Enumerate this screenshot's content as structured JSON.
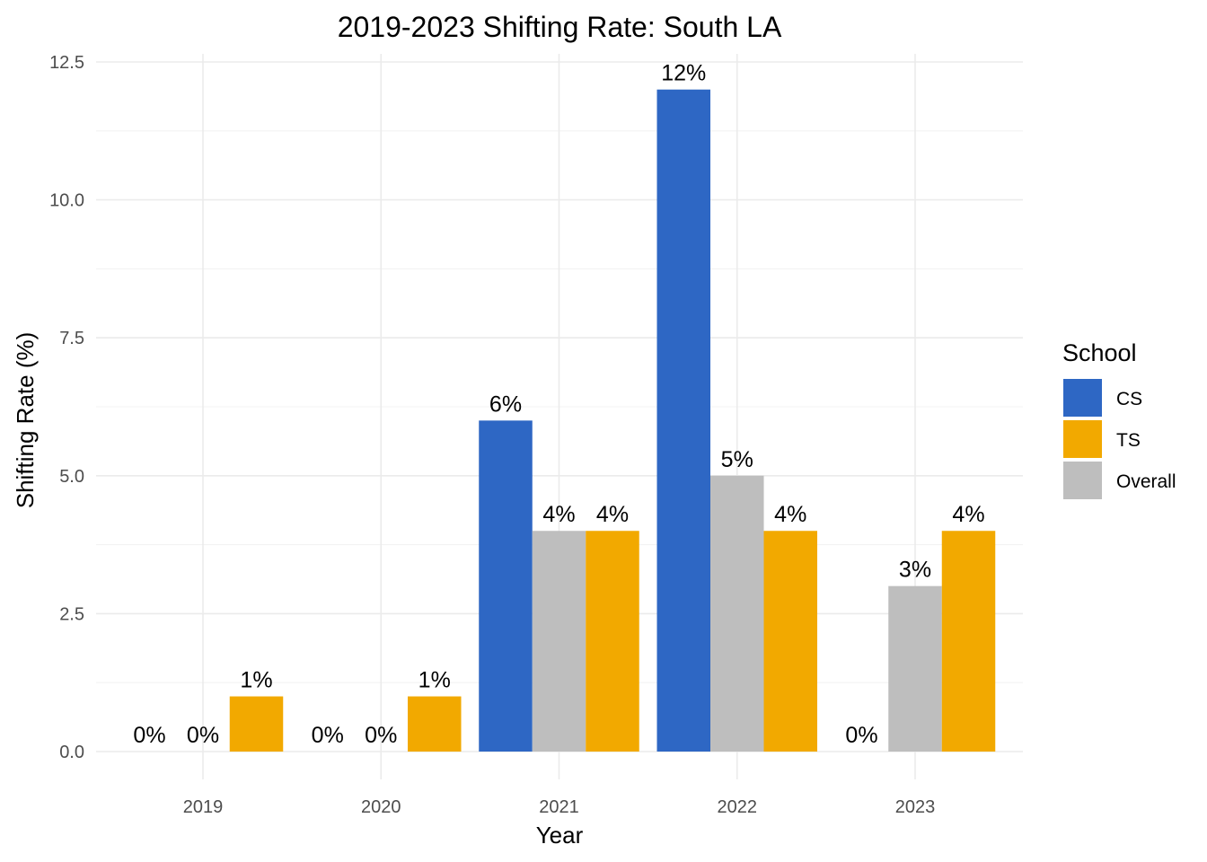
{
  "chart_data": {
    "type": "bar",
    "title": "2019-2023 Shifting Rate: South LA",
    "xlabel": "Year",
    "ylabel": "Shifting Rate (%)",
    "categories": [
      "2019",
      "2020",
      "2021",
      "2022",
      "2023"
    ],
    "series": [
      {
        "name": "CS",
        "color": "#2e67c4",
        "values": [
          0,
          0,
          6,
          12,
          0
        ],
        "labels": [
          "0%",
          "0%",
          "6%",
          "12%",
          "0%"
        ]
      },
      {
        "name": "Overall",
        "color": "#bebebe",
        "values": [
          0,
          0,
          4,
          5,
          3
        ],
        "labels": [
          "0%",
          "0%",
          "4%",
          "5%",
          "3%"
        ]
      },
      {
        "name": "TS",
        "color": "#f2a900",
        "values": [
          1,
          1,
          4,
          4,
          4
        ],
        "labels": [
          "1%",
          "1%",
          "4%",
          "4%",
          "4%"
        ]
      }
    ],
    "ylim": [
      0,
      12.5
    ],
    "yticks": [
      0,
      2.5,
      5,
      7.5,
      10,
      12.5
    ],
    "ytick_labels": [
      "0.0",
      "2.5",
      "5.0",
      "7.5",
      "10.0",
      "12.5"
    ],
    "grid": true,
    "legend": {
      "title": "School",
      "position": "right",
      "entries": [
        {
          "label": "CS",
          "color": "#2e67c4"
        },
        {
          "label": "TS",
          "color": "#f2a900"
        },
        {
          "label": "Overall",
          "color": "#bebebe"
        }
      ]
    }
  }
}
